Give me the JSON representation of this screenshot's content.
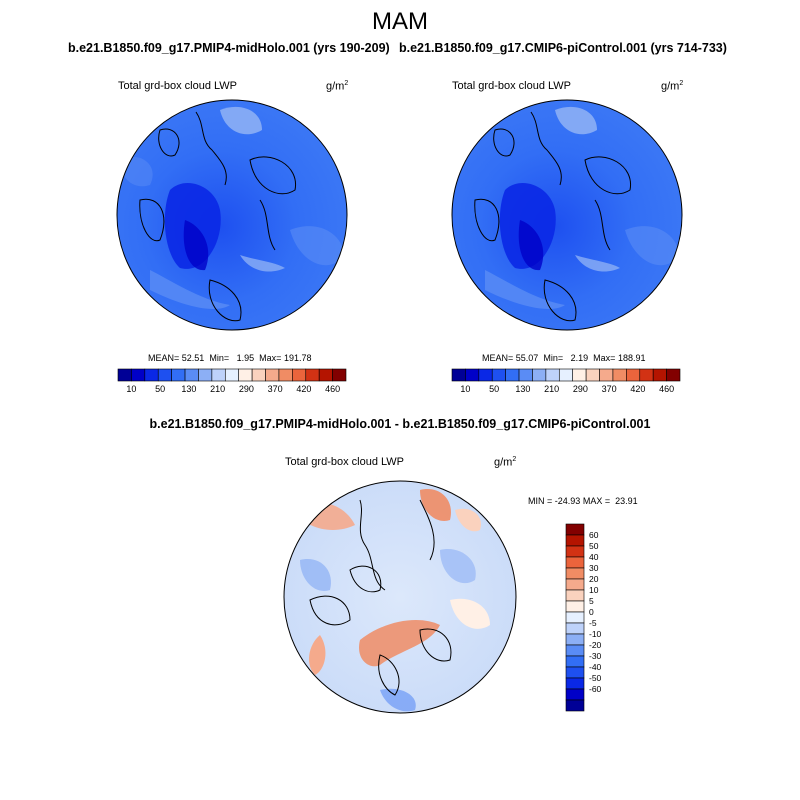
{
  "page_title": "MAM",
  "chart_data": [
    {
      "type": "heatmap",
      "title": "b.e21.B1850.f09_g17.PMIP4-midHolo.001 (yrs 190-209)",
      "left_label": "Total grd-box cloud LWP",
      "units_base": "g/m",
      "units_exp": "2",
      "stats": {
        "mean_label": "MEAN=",
        "mean": "52.51",
        "min_label": "Min=",
        "min": "1.95",
        "max_label": "Max=",
        "max": "191.78"
      },
      "colorbar": {
        "colors": [
          "#000096",
          "#0000c8",
          "#0a28e6",
          "#1e50f0",
          "#326ef5",
          "#5a8cf5",
          "#8caff5",
          "#bed2fa",
          "#e6f0ff",
          "#fff0e6",
          "#fad2be",
          "#f5aa8c",
          "#f08c64",
          "#eb643c",
          "#d23214",
          "#b41400",
          "#820000"
        ],
        "tick_labels": [
          "10",
          "50",
          "130",
          "210",
          "290",
          "370",
          "420",
          "460"
        ]
      }
    },
    {
      "type": "heatmap",
      "title": "b.e21.B1850.f09_g17.CMIP6-piControl.001 (yrs 714-733)",
      "left_label": "Total grd-box cloud LWP",
      "units_base": "g/m",
      "units_exp": "2",
      "stats": {
        "mean_label": "MEAN=",
        "mean": "55.07",
        "min_label": "Min=",
        "min": "2.19",
        "max_label": "Max=",
        "max": "188.91"
      },
      "colorbar": {
        "colors": [
          "#000096",
          "#0000c8",
          "#0a28e6",
          "#1e50f0",
          "#326ef5",
          "#5a8cf5",
          "#8caff5",
          "#bed2fa",
          "#e6f0ff",
          "#fff0e6",
          "#fad2be",
          "#f5aa8c",
          "#f08c64",
          "#eb643c",
          "#d23214",
          "#b41400",
          "#820000"
        ],
        "tick_labels": [
          "10",
          "50",
          "130",
          "210",
          "290",
          "370",
          "420",
          "460"
        ]
      }
    },
    {
      "type": "heatmap",
      "title": "b.e21.B1850.f09_g17.PMIP4-midHolo.001 - b.e21.B1850.f09_g17.CMIP6-piControl.001",
      "left_label": "Total grd-box cloud LWP",
      "units_base": "g/m",
      "units_exp": "2",
      "stats": {
        "min_label": "MIN =",
        "min": "-24.93",
        "max_label": "MAX =",
        "max": "23.91"
      },
      "colorbar": {
        "colors": [
          "#820000",
          "#b41400",
          "#d23214",
          "#eb643c",
          "#f08c64",
          "#f5aa8c",
          "#fad2be",
          "#fff0e6",
          "#e6f0ff",
          "#bed2fa",
          "#8caff5",
          "#5a8cf5",
          "#326ef5",
          "#1e50f0",
          "#0a28e6",
          "#0000c8",
          "#000096"
        ],
        "tick_labels": [
          "60",
          "50",
          "40",
          "30",
          "20",
          "10",
          "5",
          "0",
          "-5",
          "-10",
          "-20",
          "-30",
          "-40",
          "-50",
          "-60"
        ]
      }
    }
  ]
}
